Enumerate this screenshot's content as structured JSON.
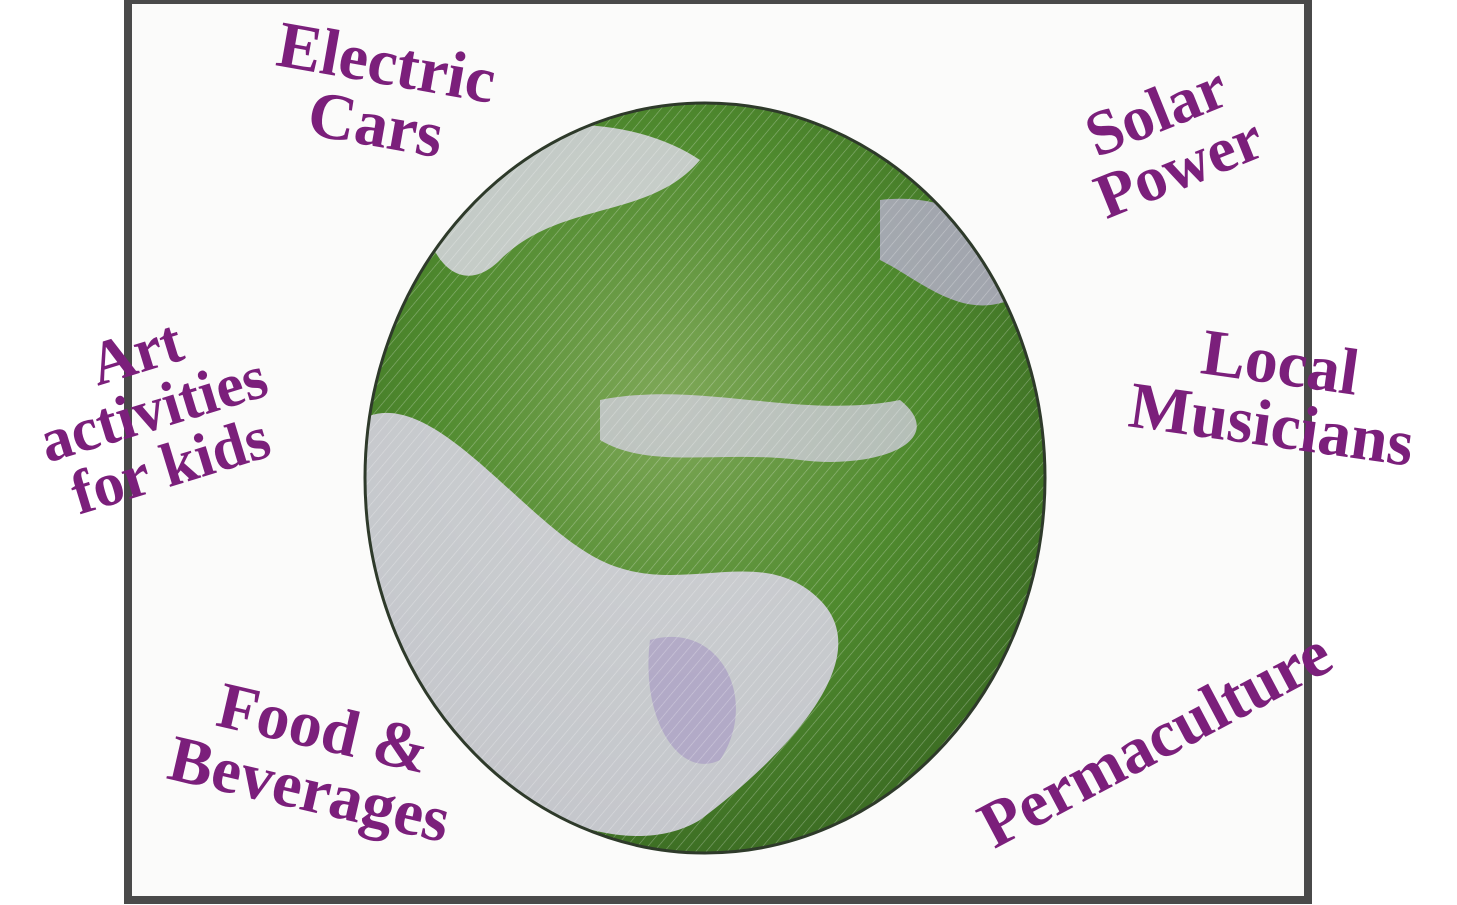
{
  "labels": [
    {
      "lines": [
        "Electric",
        "Cars"
      ]
    },
    {
      "lines": [
        "Solar",
        "Power"
      ]
    },
    {
      "lines": [
        "Art",
        "activities",
        "for kids"
      ]
    },
    {
      "lines": [
        "Local",
        "Musicians"
      ]
    },
    {
      "lines": [
        "Food &",
        "Beverages"
      ]
    },
    {
      "lines": [
        "Permaculture"
      ]
    }
  ]
}
